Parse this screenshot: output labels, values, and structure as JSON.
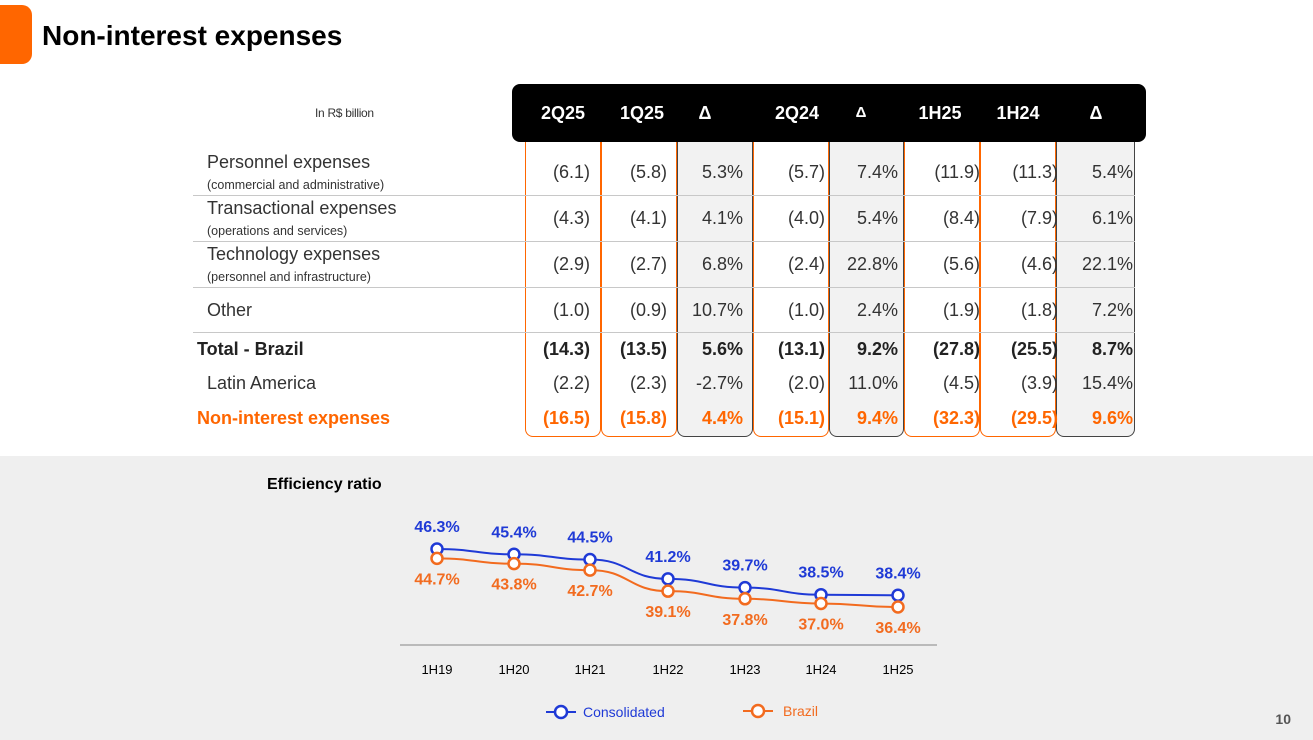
{
  "title": "Non-interest expenses",
  "table": {
    "unit": "In R$ billion",
    "headers": [
      "2Q25",
      "1Q25",
      "Δ",
      "2Q24",
      "Δ",
      "1H25",
      "1H24",
      "Δ"
    ],
    "rows": [
      {
        "label": "Personnel expenses",
        "sub": "(commercial and administrative)",
        "values": [
          "(6.1)",
          "(5.8)",
          "5.3%",
          "(5.7)",
          "7.4%",
          "(11.9)",
          "(11.3)",
          "5.4%"
        ]
      },
      {
        "label": "Transactional expenses",
        "sub": "(operations and services)",
        "values": [
          "(4.3)",
          "(4.1)",
          "4.1%",
          "(4.0)",
          "5.4%",
          "(8.4)",
          "(7.9)",
          "6.1%"
        ]
      },
      {
        "label": "Technology expenses",
        "sub": "(personnel and infrastructure)",
        "values": [
          "(2.9)",
          "(2.7)",
          "6.8%",
          "(2.4)",
          "22.8%",
          "(5.6)",
          "(4.6)",
          "22.1%"
        ]
      },
      {
        "label": "Other",
        "sub": "",
        "values": [
          "(1.0)",
          "(0.9)",
          "10.7%",
          "(1.0)",
          "2.4%",
          "(1.9)",
          "(1.8)",
          "7.2%"
        ]
      },
      {
        "label": "Total - Brazil",
        "sub": "",
        "values": [
          "(14.3)",
          "(13.5)",
          "5.6%",
          "(13.1)",
          "9.2%",
          "(27.8)",
          "(25.5)",
          "8.7%"
        ]
      },
      {
        "label": "Latin America",
        "sub": "",
        "values": [
          "(2.2)",
          "(2.3)",
          "-2.7%",
          "(2.0)",
          "11.0%",
          "(4.5)",
          "(3.9)",
          "15.4%"
        ]
      },
      {
        "label": "Non-interest expenses",
        "sub": "",
        "values": [
          "(16.5)",
          "(15.8)",
          "4.4%",
          "(15.1)",
          "9.4%",
          "(32.3)",
          "(29.5)",
          "9.6%"
        ]
      }
    ]
  },
  "chart_data": {
    "type": "line",
    "title": "Efficiency ratio",
    "categories": [
      "1H19",
      "1H20",
      "1H21",
      "1H22",
      "1H23",
      "1H24",
      "1H25"
    ],
    "series": [
      {
        "name": "Consolidated",
        "values": [
          46.3,
          45.4,
          44.5,
          41.2,
          39.7,
          38.5,
          38.4
        ],
        "labels": [
          "46.3%",
          "45.4%",
          "44.5%",
          "41.2%",
          "39.7%",
          "38.5%",
          "38.4%"
        ],
        "color": "#1f3ad6"
      },
      {
        "name": "Brazil",
        "values": [
          44.7,
          43.8,
          42.7,
          39.1,
          37.8,
          37.0,
          36.4
        ],
        "labels": [
          "44.7%",
          "43.8%",
          "42.7%",
          "39.1%",
          "37.8%",
          "37.0%",
          "36.4%"
        ],
        "color": "#f26b1f"
      }
    ],
    "xlabel": "",
    "ylabel": "",
    "grid": false,
    "legend": "bottom"
  },
  "page_number": "10",
  "colors": {
    "accent": "#ff6600",
    "consolidated": "#1f3ad6",
    "brazil": "#f26b1f"
  }
}
